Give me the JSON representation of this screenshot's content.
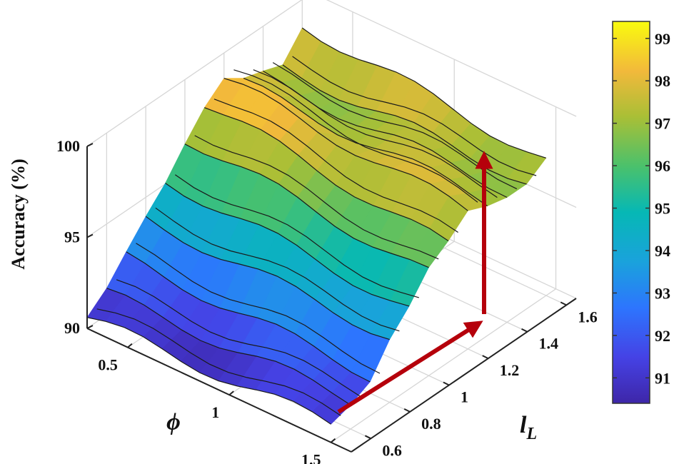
{
  "chart_data": {
    "type": "surface",
    "y_axis": {
      "label": "Accuracy (%)",
      "ticks": [
        "90",
        "95",
        "100"
      ],
      "range": [
        90,
        100
      ]
    },
    "phi_axis": {
      "label": "ϕ",
      "ticks": [
        "0.5",
        "1",
        "1.5"
      ]
    },
    "lL_axis": {
      "label_main": "l",
      "label_sub": "L",
      "ticks": [
        "0.6",
        "0.8",
        "1",
        "1.2",
        "1.4",
        "1.6"
      ]
    },
    "colorbar": {
      "ticks": [
        "91",
        "92",
        "93",
        "94",
        "95",
        "96",
        "97",
        "98",
        "99"
      ],
      "range": [
        90.4,
        99.4
      ]
    },
    "surface_profile": {
      "lL": [
        0.5,
        0.6,
        0.7,
        0.8,
        0.9,
        1.0,
        1.1,
        1.2,
        1.3,
        1.4,
        1.5,
        1.6
      ],
      "accuracy_at_phi_0.3": [
        90.6,
        91.2,
        92.4,
        93.8,
        95.2,
        96.8,
        98.0,
        98.6,
        97.6,
        97.2,
        97.0,
        98.6
      ],
      "accuracy_at_phi_1.5": [
        91.0,
        91.6,
        92.2,
        93.6,
        94.4,
        95.6,
        96.4,
        97.6,
        97.4,
        97.2,
        97.0,
        97.4
      ]
    },
    "annotations": [
      "red arrow along l_L increasing",
      "red arrow upward toward higher accuracy"
    ],
    "colors": {
      "annotation_arrow": "#b5000b",
      "surface_low": "#3e26a8",
      "surface_high": "#f9fb0e"
    }
  }
}
